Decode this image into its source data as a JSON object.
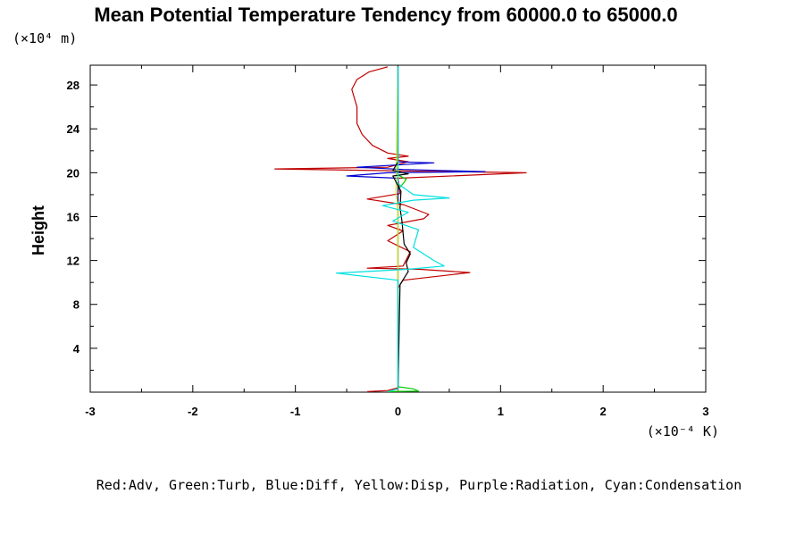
{
  "chart_data": {
    "type": "line",
    "title": "Mean Potential Temperature Tendency from 60000.0 to 65000.0",
    "ylabel": "Height",
    "y_scale_label": "(×10⁴ m)",
    "x_scale_label": "(×10⁻⁴ K)",
    "legend_text": "Red:Adv, Green:Turb, Blue:Diff, Yellow:Disp, Purple:Radiation, Cyan:Condensation",
    "legend_placement": "bottom",
    "xlim": [
      -3,
      3
    ],
    "ylim": [
      0,
      29.8
    ],
    "xticks": [
      -3,
      -2,
      -1,
      0,
      1,
      2,
      3
    ],
    "xtick_labels": [
      "-3",
      "-2",
      "-1",
      "0",
      "1",
      "2",
      "3"
    ],
    "yticks": [
      4,
      8,
      12,
      16,
      20,
      24,
      28
    ],
    "ytick_labels": [
      "4",
      "8",
      "12",
      "16",
      "20",
      "24",
      "28"
    ],
    "grid": false,
    "series": [
      {
        "color": "#c00000",
        "points": [
          [
            -0.3,
            0.05
          ],
          [
            -0.1,
            0.15
          ],
          [
            0,
            0.4
          ],
          [
            0,
            9.5
          ],
          [
            0.05,
            10.2
          ],
          [
            0.7,
            10.9
          ],
          [
            0.2,
            11.2
          ],
          [
            -0.3,
            11.3
          ],
          [
            0.05,
            11.5
          ],
          [
            0.12,
            12.8
          ],
          [
            -0.1,
            13.8
          ],
          [
            0.05,
            14.7
          ],
          [
            -0.1,
            15.2
          ],
          [
            0.25,
            15.8
          ],
          [
            0.3,
            16.2
          ],
          [
            0.05,
            17.1
          ],
          [
            -0.3,
            17.6
          ],
          [
            0.02,
            18.1
          ],
          [
            0,
            19.5
          ],
          [
            1.25,
            20.0
          ],
          [
            -1.2,
            20.35
          ],
          [
            -0.1,
            20.5
          ],
          [
            0.1,
            21.0
          ],
          [
            -0.1,
            21.3
          ],
          [
            0.1,
            21.5
          ],
          [
            -0.1,
            21.8
          ],
          [
            -0.25,
            22.5
          ],
          [
            -0.35,
            23.5
          ],
          [
            -0.4,
            24.5
          ],
          [
            -0.4,
            26
          ],
          [
            -0.45,
            27.6
          ],
          [
            -0.4,
            28.5
          ],
          [
            -0.28,
            29.2
          ],
          [
            -0.1,
            29.65
          ]
        ]
      },
      {
        "color": "#00cc00",
        "points": [
          [
            -0.1,
            0.05
          ],
          [
            0.2,
            0.1
          ],
          [
            0.15,
            0.3
          ],
          [
            0,
            0.5
          ],
          [
            0,
            18.5
          ],
          [
            0.05,
            19.0
          ],
          [
            0.08,
            19.4
          ],
          [
            0,
            19.8
          ],
          [
            0,
            29.7
          ]
        ]
      },
      {
        "color": "#0000d0",
        "points": [
          [
            0,
            0.1
          ],
          [
            0,
            19.5
          ],
          [
            -0.5,
            19.7
          ],
          [
            -0.1,
            20.0
          ],
          [
            0.85,
            20.1
          ],
          [
            0.05,
            20.3
          ],
          [
            -0.4,
            20.5
          ],
          [
            0.35,
            20.9
          ],
          [
            0,
            21.0
          ],
          [
            0,
            29.7
          ]
        ]
      },
      {
        "color": "#e0e000",
        "points": [
          [
            0,
            0.1
          ],
          [
            0,
            17.0
          ],
          [
            -0.02,
            18.0
          ],
          [
            0,
            29.7
          ]
        ]
      },
      {
        "color": "#000000",
        "points": [
          [
            0,
            0.2
          ],
          [
            0.02,
            9.8
          ],
          [
            0.1,
            11.0
          ],
          [
            0.08,
            11.8
          ],
          [
            0.12,
            12.6
          ],
          [
            0.06,
            13.5
          ],
          [
            0.05,
            14.5
          ],
          [
            0.04,
            15.5
          ],
          [
            0.02,
            16.8
          ],
          [
            0.03,
            18.3
          ],
          [
            -0.05,
            19.7
          ],
          [
            0.1,
            19.9
          ],
          [
            -0.05,
            20.2
          ],
          [
            0,
            21.0
          ],
          [
            0,
            29.7
          ]
        ]
      },
      {
        "color": "#00e0e0",
        "points": [
          [
            -0.1,
            0.05
          ],
          [
            0,
            0.3
          ],
          [
            0,
            10.2
          ],
          [
            -0.6,
            10.85
          ],
          [
            -0.3,
            11.0
          ],
          [
            0.1,
            11.2
          ],
          [
            0.45,
            11.5
          ],
          [
            0.35,
            12.0
          ],
          [
            0.15,
            13.2
          ],
          [
            0.2,
            14.8
          ],
          [
            -0.05,
            15.6
          ],
          [
            0.1,
            16.4
          ],
          [
            -0.15,
            17.0
          ],
          [
            0.15,
            17.5
          ],
          [
            0.5,
            17.7
          ],
          [
            0.15,
            18.0
          ],
          [
            0,
            19.0
          ],
          [
            0,
            29.7
          ]
        ]
      }
    ]
  }
}
